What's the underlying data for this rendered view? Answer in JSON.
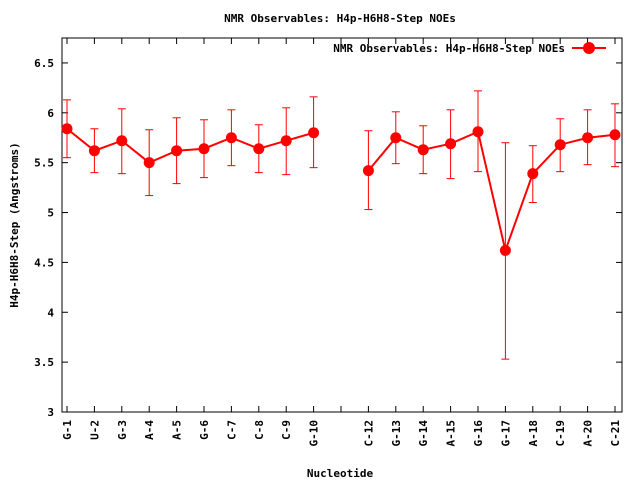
{
  "chart_data": {
    "type": "line",
    "title": "NMR Observables: H4p-H6H8-Step NOEs",
    "xlabel": "Nucleotide",
    "ylabel": "H4p-H6H8-Step (Angstroms)",
    "ylim": [
      3,
      6.75
    ],
    "yticks": [
      "3",
      "3.5",
      "4",
      "4.5",
      "5",
      "5.5",
      "6",
      "6.5"
    ],
    "grid": false,
    "legend_position": "top-right",
    "categories": [
      "G-1",
      "U-2",
      "G-3",
      "A-4",
      "A-5",
      "G-6",
      "C-7",
      "C-8",
      "C-9",
      "G-10",
      "",
      "C-12",
      "G-13",
      "G-14",
      "A-15",
      "G-16",
      "G-17",
      "A-18",
      "C-19",
      "A-20",
      "C-21"
    ],
    "series": [
      {
        "name": "NMR Observables: H4p-H6H8-Step NOEs",
        "color": "#ff0000",
        "values": [
          5.84,
          5.62,
          5.72,
          5.5,
          5.62,
          5.64,
          5.75,
          5.64,
          5.72,
          5.8,
          null,
          5.42,
          5.75,
          5.63,
          5.69,
          5.81,
          4.62,
          5.39,
          5.68,
          5.75,
          5.78
        ],
        "err_low": [
          5.55,
          5.4,
          5.39,
          5.17,
          5.29,
          5.35,
          5.47,
          5.4,
          5.38,
          5.45,
          null,
          5.03,
          5.49,
          5.39,
          5.34,
          5.41,
          3.53,
          5.1,
          5.41,
          5.48,
          5.46
        ],
        "err_high": [
          6.13,
          5.84,
          6.04,
          5.83,
          5.95,
          5.93,
          6.03,
          5.88,
          6.05,
          6.16,
          null,
          5.82,
          6.01,
          5.87,
          6.03,
          6.22,
          5.7,
          5.67,
          5.94,
          6.03,
          6.09
        ]
      }
    ]
  }
}
